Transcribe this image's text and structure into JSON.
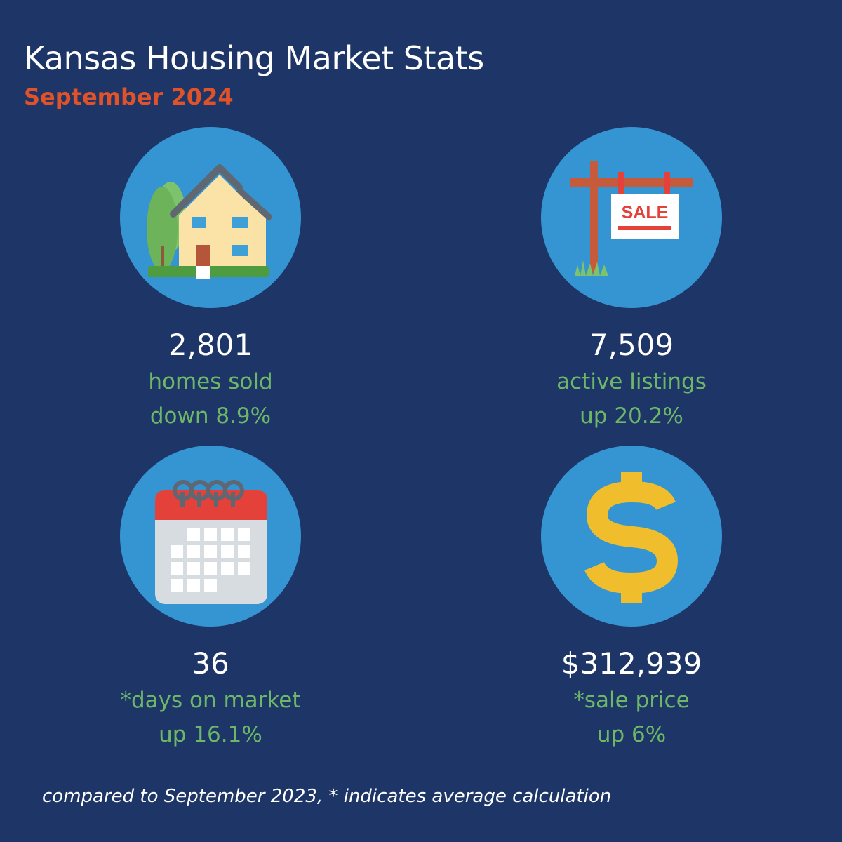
{
  "header": {
    "title": "Kansas Housing Market Stats",
    "subtitle": "September 2024"
  },
  "colors": {
    "background": "#1e3567",
    "circle": "#3595d2",
    "accent_green": "#6cb868",
    "accent_orange": "#e0522a"
  },
  "stats": [
    {
      "icon": "house-icon",
      "value": "2,801",
      "label": "homes sold",
      "change": "down 8.9%"
    },
    {
      "icon": "for-sale-sign-icon",
      "sign_text": "SALE",
      "value": "7,509",
      "label": "active listings",
      "change": "up 20.2%"
    },
    {
      "icon": "calendar-icon",
      "value": "36",
      "label": "*days on market",
      "change": "up 16.1%"
    },
    {
      "icon": "dollar-sign-icon",
      "value": "$312,939",
      "label": "*sale price",
      "change": "up 6%"
    }
  ],
  "footnote": "compared to September 2023,  * indicates average calculation"
}
